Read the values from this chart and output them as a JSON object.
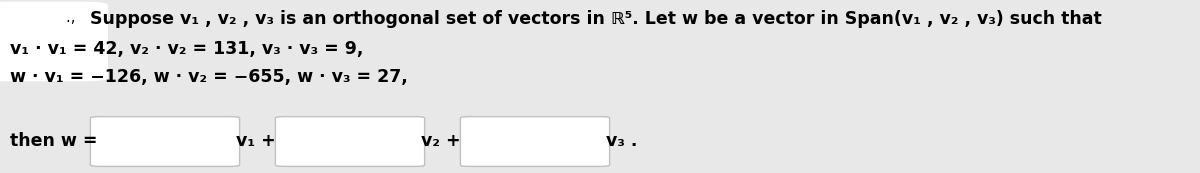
{
  "background_color": "#e8e8e8",
  "text_color": "#000000",
  "box_color": "#ffffff",
  "box_edge_color": "#c0c0c0",
  "deco_color": "#ffffff",
  "line1_prefix": "., ",
  "line1": "Suppose v₁ , v₂ , v₃ is an orthogonal set of vectors in ℝ⁵. Let w be a vector in Span(v₁ , v₂ , v₃) such that",
  "line2": "v₁ · v₁ = 42, v₂ · v₂ = 131, v₃ · v₃ = 9,",
  "line3": "w · v₁ = −126, w · v₂ = −655, w · v₃ = 27,",
  "line4_prefix": "then w =",
  "line4_mid1": "v₁ +",
  "line4_mid2": "v₂ +",
  "line4_end": "v₃ .",
  "font_size": 12.5
}
